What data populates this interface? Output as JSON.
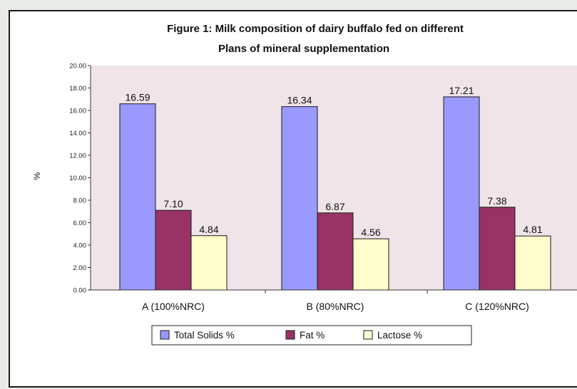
{
  "chart_data": {
    "type": "bar",
    "title_lines": [
      "Figure 1: Milk composition of dairy buffalo fed on different",
      "Plans of mineral supplementation"
    ],
    "xlabel": "",
    "ylabel": "%",
    "ylim": [
      0,
      20
    ],
    "ytick_labels": [
      "0.00",
      "2.00",
      "4.00",
      "6.00",
      "8.00",
      "10.00",
      "12.00",
      "14.00",
      "16.00",
      "18.00",
      "20.00"
    ],
    "categories": [
      "A (100%NRC)",
      "B (80%NRC)",
      "C (120%NRC)"
    ],
    "series": [
      {
        "name": "Total Solids %",
        "values": [
          16.59,
          16.34,
          17.21
        ],
        "labels": [
          "16.59",
          "16.34",
          "17.21"
        ],
        "color": "#9999ff"
      },
      {
        "name": "Fat %",
        "values": [
          7.1,
          6.87,
          7.38
        ],
        "labels": [
          "7.10",
          "6.87",
          "7.38"
        ],
        "color": "#993366"
      },
      {
        "name": "Lactose %",
        "values": [
          4.84,
          4.56,
          4.81
        ],
        "labels": [
          "4.84",
          "4.56",
          "4.81"
        ],
        "color": "#ffffcc"
      }
    ],
    "plot_background": "#efe4e8",
    "grid": false,
    "legend_position": "bottom",
    "data_labels": true
  }
}
